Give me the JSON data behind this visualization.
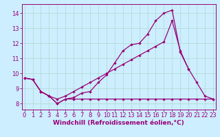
{
  "background_color": "#cceeff",
  "grid_color": "#b0d8cc",
  "line_color": "#990077",
  "x_ticks": [
    0,
    1,
    2,
    3,
    4,
    5,
    6,
    7,
    8,
    9,
    10,
    11,
    12,
    13,
    14,
    15,
    16,
    17,
    18,
    19,
    20,
    21,
    22,
    23
  ],
  "y_ticks": [
    8,
    9,
    10,
    11,
    12,
    13,
    14
  ],
  "ylim": [
    7.6,
    14.6
  ],
  "xlim": [
    -0.3,
    23.3
  ],
  "series1_x": [
    0,
    1,
    2,
    3,
    4,
    5,
    6,
    7,
    8,
    9,
    10,
    11,
    12,
    13,
    14,
    15,
    16,
    17,
    18,
    19,
    20,
    21,
    22,
    23
  ],
  "series1_y": [
    9.7,
    9.6,
    8.8,
    8.5,
    8.0,
    8.3,
    8.3,
    8.3,
    8.3,
    8.3,
    8.3,
    8.3,
    8.3,
    8.3,
    8.3,
    8.3,
    8.3,
    8.3,
    8.3,
    8.3,
    8.3,
    8.3,
    8.3,
    8.3
  ],
  "series2_x": [
    0,
    1,
    2,
    3,
    4,
    5,
    6,
    7,
    8,
    9,
    10,
    11,
    12,
    13,
    14,
    15,
    16,
    17,
    18,
    19,
    20,
    21,
    22,
    23
  ],
  "series2_y": [
    9.7,
    9.6,
    8.8,
    8.5,
    8.0,
    8.3,
    8.4,
    8.7,
    8.8,
    9.4,
    9.9,
    10.7,
    11.5,
    11.9,
    12.0,
    12.6,
    13.5,
    14.0,
    14.2,
    11.4,
    10.3,
    9.4,
    8.5,
    8.3
  ],
  "series3_x": [
    0,
    1,
    2,
    3,
    4,
    5,
    6,
    7,
    8,
    9,
    10,
    11,
    12,
    13,
    14,
    15,
    16,
    17,
    18,
    19,
    20
  ],
  "series3_y": [
    9.7,
    9.6,
    8.8,
    8.5,
    8.3,
    8.5,
    8.8,
    9.1,
    9.4,
    9.7,
    10.0,
    10.3,
    10.6,
    10.9,
    11.2,
    11.5,
    11.8,
    12.1,
    13.5,
    11.5,
    10.3
  ],
  "xlabel": "Windchill (Refroidissement éolien,°C)",
  "xlabel_fontsize": 6.5,
  "tick_fontsize": 6,
  "marker_size": 2.2,
  "linewidth": 0.9
}
